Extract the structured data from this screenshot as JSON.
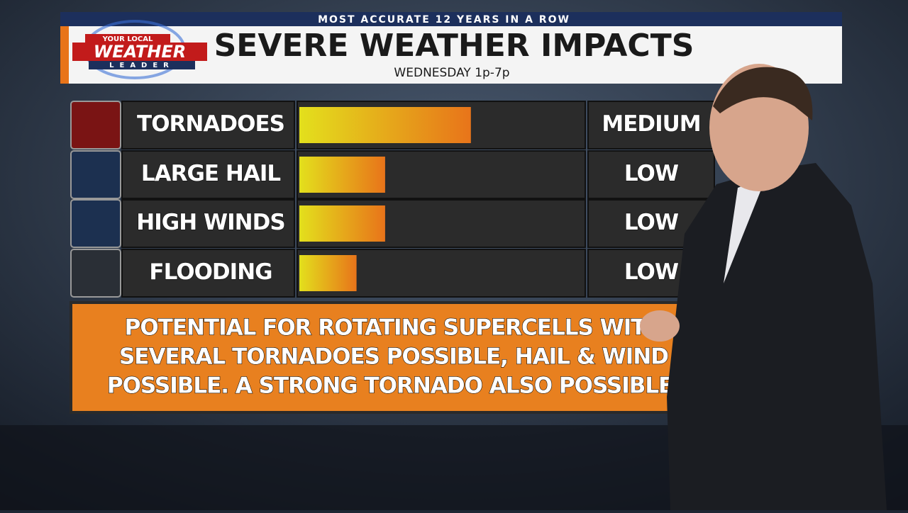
{
  "banner": "MOST ACCURATE 12 YEARS IN A ROW",
  "logo": {
    "top": "YOUR LOCAL",
    "main": "WEATHER",
    "bottom": "LEADER"
  },
  "chart_data": {
    "type": "bar",
    "orientation": "horizontal",
    "title": "SEVERE WEATHER IMPACTS",
    "subtitle": "WEDNESDAY 1p-7p",
    "categories": [
      "TORNADOES",
      "LARGE HAIL",
      "HIGH WINDS",
      "FLOODING"
    ],
    "values": [
      0.6,
      0.3,
      0.3,
      0.2
    ],
    "levels": [
      "MEDIUM",
      "LOW",
      "LOW",
      "LOW"
    ],
    "xlim": [
      0,
      1
    ],
    "color": [
      "#e3e01c",
      "#e8741a"
    ]
  },
  "summary": [
    "POTENTIAL FOR ROTATING SUPERCELLS WITH",
    "SEVERAL TORNADOES POSSIBLE, HAIL & WIND",
    "POSSIBLE.  A STRONG TORNADO ALSO POSSIBLE."
  ]
}
